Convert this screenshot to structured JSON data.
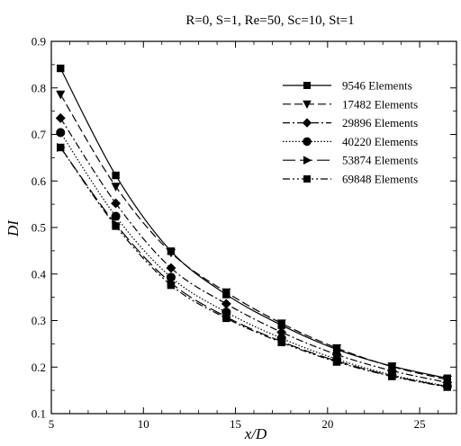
{
  "chart_data": {
    "type": "line",
    "title": "R=0, S=1, Re=50, Sc=10, St=1",
    "xlabel": "x/D",
    "ylabel": "DI",
    "xlim": [
      5,
      27
    ],
    "ylim": [
      0.1,
      0.9
    ],
    "xticks": [
      5,
      10,
      15,
      20,
      25
    ],
    "yticks": [
      0.1,
      0.2,
      0.3,
      0.4,
      0.5,
      0.6,
      0.7,
      0.8,
      0.9
    ],
    "grid": false,
    "legend_position": "top-right",
    "x": [
      5.5,
      8.5,
      11.5,
      14.5,
      17.5,
      20.5,
      23.5,
      26.5
    ],
    "series": [
      {
        "name": "9546 Elements",
        "marker": "square",
        "dash": "solid",
        "values": [
          0.842,
          0.612,
          0.449,
          0.356,
          0.29,
          0.238,
          0.202,
          0.176
        ]
      },
      {
        "name": "17482 Elements",
        "marker": "triangle-down",
        "dash": "dashed",
        "values": [
          0.786,
          0.588,
          0.446,
          0.361,
          0.294,
          0.241,
          0.201,
          0.173
        ]
      },
      {
        "name": "29896 Elements",
        "marker": "diamond",
        "dash": "dashdot",
        "values": [
          0.735,
          0.552,
          0.413,
          0.336,
          0.275,
          0.227,
          0.192,
          0.167
        ]
      },
      {
        "name": "40220 Elements",
        "marker": "circle",
        "dash": "dotted",
        "values": [
          0.704,
          0.524,
          0.393,
          0.318,
          0.262,
          0.217,
          0.183,
          0.159
        ]
      },
      {
        "name": "53874 Elements",
        "marker": "triangle-right",
        "dash": "longdash",
        "values": [
          0.672,
          0.507,
          0.381,
          0.308,
          0.255,
          0.213,
          0.181,
          0.158
        ]
      },
      {
        "name": "69848 Elements",
        "marker": "square",
        "dash": "dashdotdot",
        "values": [
          0.672,
          0.503,
          0.376,
          0.305,
          0.253,
          0.211,
          0.18,
          0.157
        ]
      }
    ]
  }
}
